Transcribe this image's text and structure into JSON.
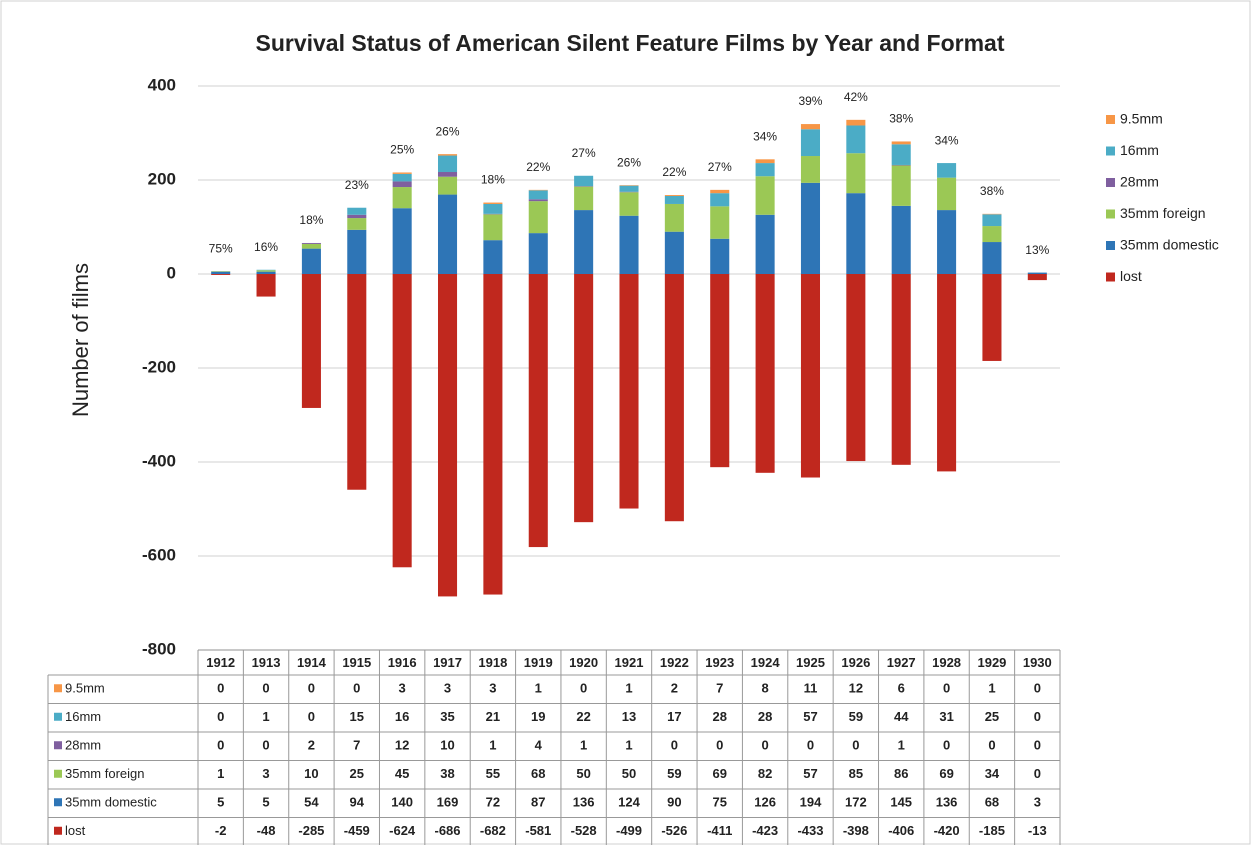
{
  "chart_data": {
    "type": "stacked_bar",
    "title": "Survival Status of American Silent Feature Films by Year and Format",
    "ylabel": "Number of films",
    "categories": [
      "1912",
      "1913",
      "1914",
      "1915",
      "1916",
      "1917",
      "1918",
      "1919",
      "1920",
      "1921",
      "1922",
      "1923",
      "1924",
      "1925",
      "1926",
      "1927",
      "1928",
      "1929",
      "1930"
    ],
    "survival_labels": [
      "75%",
      "16%",
      "18%",
      "23%",
      "25%",
      "26%",
      "18%",
      "22%",
      "27%",
      "26%",
      "22%",
      "27%",
      "34%",
      "39%",
      "42%",
      "38%",
      "34%",
      "38%",
      "13%"
    ],
    "series": [
      {
        "name": "9.5mm",
        "color": "#f79646",
        "values": [
          0,
          0,
          0,
          0,
          3,
          3,
          3,
          1,
          0,
          1,
          2,
          7,
          8,
          11,
          12,
          6,
          0,
          1,
          0
        ]
      },
      {
        "name": "16mm",
        "color": "#4bacc6",
        "values": [
          0,
          1,
          0,
          15,
          16,
          35,
          21,
          19,
          22,
          13,
          17,
          28,
          28,
          57,
          59,
          44,
          31,
          25,
          0
        ]
      },
      {
        "name": "28mm",
        "color": "#7f5f9f",
        "values": [
          0,
          0,
          2,
          7,
          12,
          10,
          1,
          4,
          1,
          1,
          0,
          0,
          0,
          0,
          0,
          1,
          0,
          0,
          0
        ]
      },
      {
        "name": "35mm foreign",
        "color": "#9bc855",
        "values": [
          1,
          3,
          10,
          25,
          45,
          38,
          55,
          68,
          50,
          50,
          59,
          69,
          82,
          57,
          85,
          86,
          69,
          34,
          0
        ]
      },
      {
        "name": "35mm domestic",
        "color": "#2e75b6",
        "values": [
          5,
          5,
          54,
          94,
          140,
          169,
          72,
          87,
          136,
          124,
          90,
          75,
          126,
          194,
          172,
          145,
          136,
          68,
          3
        ]
      },
      {
        "name": "lost",
        "color": "#c0281e",
        "values": [
          -2,
          -48,
          -285,
          -459,
          -624,
          -686,
          -682,
          -581,
          -528,
          -499,
          -526,
          -411,
          -423,
          -433,
          -398,
          -406,
          -420,
          -185,
          -13
        ]
      }
    ],
    "ylim": [
      -800,
      400
    ],
    "yticks": [
      -800,
      -600,
      -400,
      -200,
      0,
      200,
      400
    ],
    "grid": true,
    "legend": "right"
  }
}
